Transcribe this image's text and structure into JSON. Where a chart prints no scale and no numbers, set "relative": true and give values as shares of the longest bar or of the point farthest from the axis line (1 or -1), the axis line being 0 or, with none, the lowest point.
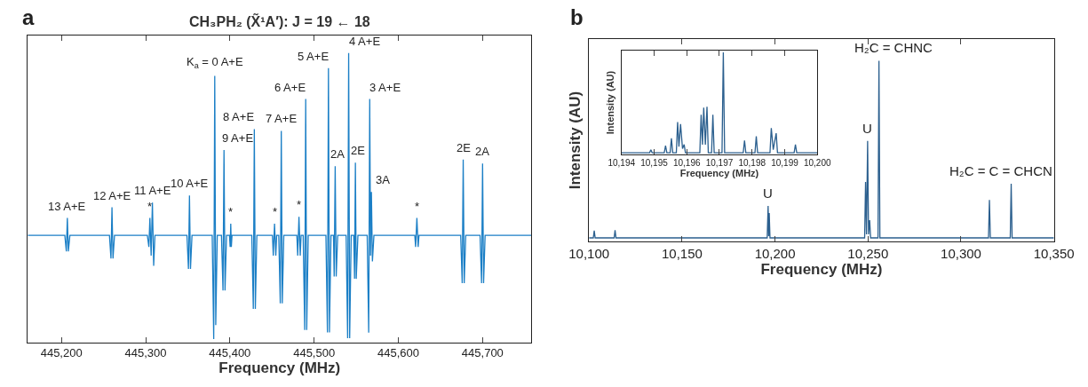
{
  "chart_data": [
    {
      "type": "line",
      "relative": true,
      "title": "CH₃PH₂ (X̃¹A′): J = 19 ← 18",
      "xlabel": "Frequency (MHz)",
      "tick_labels": "x",
      "xlim": [
        445160,
        445758
      ],
      "xticks": [
        {
          "value": 445200,
          "label": "445,200"
        },
        {
          "value": 445300,
          "label": "445,300"
        },
        {
          "value": 445400,
          "label": "445,400"
        },
        {
          "value": 445500,
          "label": "445,500"
        },
        {
          "value": 445600,
          "label": "445,600"
        },
        {
          "value": 445700,
          "label": "445,700"
        }
      ],
      "x": [
        445160,
        445204,
        445205.8,
        445207,
        445208.2,
        445210,
        445257,
        445258.8,
        445260,
        445261.2,
        445263,
        445302,
        445303.8,
        445305,
        445306.5,
        445308,
        445309.5,
        445311,
        445349,
        445350.8,
        445352,
        445353.2,
        445355,
        445379,
        445380.8,
        445382,
        445383.2,
        445385,
        445390,
        445391.8,
        445393,
        445394.2,
        445396,
        445399.5,
        445400.3,
        445401,
        445401.7,
        445402.5,
        445426,
        445427.8,
        445429,
        445430.2,
        445432,
        445450.5,
        445451.5,
        445453,
        445454.5,
        445455.5,
        445458,
        445459.8,
        445461,
        445462.2,
        445464,
        445479.5,
        445480.5,
        445482,
        445483.5,
        445484.5,
        445487,
        445488.8,
        445490,
        445491.2,
        445493,
        445514,
        445515.8,
        445517,
        445518.2,
        445520,
        445523,
        445523.8,
        445525,
        445526.2,
        445528,
        445538,
        445539.8,
        445541,
        445542.2,
        445544,
        445547,
        445548,
        445549,
        445550,
        445552,
        445563,
        445564.8,
        445566,
        445567,
        445568,
        445569.2,
        445571,
        445619.5,
        445620.5,
        445622,
        445623.5,
        445624.5,
        445674,
        445675.8,
        445677,
        445678.2,
        445680,
        445697,
        445698.8,
        445700,
        445701.2,
        445703,
        445758
      ],
      "series": [
        {
          "color": "#1b7fc6",
          "values": [
            0.37,
            0.37,
            0.315,
            0.43,
            0.315,
            0.37,
            0.37,
            0.29,
            0.467,
            0.29,
            0.37,
            0.37,
            0.33,
            0.43,
            0.3,
            0.483,
            0.265,
            0.37,
            0.37,
            0.254,
            0.508,
            0.254,
            0.37,
            0.37,
            0.012,
            0.921,
            0.06,
            0.37,
            0.37,
            0.18,
            0.665,
            0.18,
            0.37,
            0.37,
            0.33,
            0.41,
            0.33,
            0.37,
            0.37,
            0.116,
            0.737,
            0.116,
            0.37,
            0.37,
            0.3,
            0.41,
            0.3,
            0.37,
            0.37,
            0.135,
            0.731,
            0.135,
            0.37,
            0.37,
            0.3,
            0.434,
            0.3,
            0.37,
            0.37,
            0.043,
            0.841,
            0.043,
            0.37,
            0.37,
            0.035,
            0.948,
            0.035,
            0.37,
            0.37,
            0.228,
            0.609,
            0.228,
            0.37,
            0.37,
            0.015,
            1,
            0.015,
            0.37,
            0.37,
            0.22,
            0.621,
            0.22,
            0.37,
            0.37,
            0.034,
            0.841,
            0.3,
            0.52,
            0.28,
            0.37,
            0.37,
            0.33,
            0.43,
            0.33,
            0.37,
            0.37,
            0.205,
            0.632,
            0.205,
            0.37,
            0.37,
            0.205,
            0.618,
            0.205,
            0.37,
            0.37
          ]
        }
      ],
      "annotations": [
        "a",
        {
          "text": "13 A+E",
          "x": 445207,
          "y": 0.43
        },
        {
          "text": "12 A+E",
          "x": 445260,
          "y": 0.467
        },
        {
          "text": "*",
          "x": 445305,
          "y": 0.43
        },
        {
          "text": "11 A+E",
          "x": 445308,
          "y": 0.483
        },
        {
          "text": "10 A+E",
          "x": 445352,
          "y": 0.508
        },
        {
          "text": "K$_{a}$ = 0 A+E",
          "x": 445382,
          "y": 0.921
        },
        {
          "text": "9 A+E",
          "x": 445393,
          "y": 0.665
        },
        {
          "text": "*",
          "x": 445401,
          "y": 0.41
        },
        {
          "text": "8 A+E",
          "x": 445429,
          "y": 0.737
        },
        {
          "text": "*",
          "x": 445453,
          "y": 0.41
        },
        {
          "text": "7 A+E",
          "x": 445461,
          "y": 0.731
        },
        {
          "text": "*",
          "x": 445482,
          "y": 0.434
        },
        {
          "text": "6 A+E",
          "x": 445490,
          "y": 0.841
        },
        {
          "text": "5 A+E",
          "x": 445517,
          "y": 0.948
        },
        {
          "text": "2A",
          "x": 445525,
          "y": 0.609
        },
        {
          "text": "4 A+E",
          "x": 445541,
          "y": 1
        },
        {
          "text": "2E",
          "x": 445549,
          "y": 0.621
        },
        {
          "text": "3 A+E",
          "x": 445566,
          "y": 0.841
        },
        {
          "text": "3A",
          "x": 445568,
          "y": 0.52
        },
        {
          "text": "*",
          "x": 445622,
          "y": 0.43
        },
        {
          "text": "2E",
          "x": 445677,
          "y": 0.632
        },
        {
          "text": "2A",
          "x": 445700,
          "y": 0.618
        }
      ]
    },
    {
      "type": "line",
      "relative": true,
      "xlabel": "Frequency (MHz)",
      "ylabel": "Intensity (AU)",
      "tick_labels": "x",
      "xlim": [
        10100,
        10350
      ],
      "xticks": [
        {
          "value": 10100,
          "label": "10,100"
        },
        {
          "value": 10150,
          "label": "10,150"
        },
        {
          "value": 10200,
          "label": "10,200"
        },
        {
          "value": 10250,
          "label": "10,250"
        },
        {
          "value": 10300,
          "label": "10,300"
        },
        {
          "value": 10350,
          "label": "10,350"
        }
      ],
      "x": [
        10100,
        10102.3,
        10102.8,
        10103.3,
        10113.5,
        10114,
        10114.5,
        10195.8,
        10196.3,
        10196.6,
        10196.9,
        10197.3,
        10248.2,
        10248.7,
        10249.2,
        10249.8,
        10250.3,
        10250.9,
        10251.4,
        10255.4,
        10255.9,
        10256.4,
        10314.8,
        10315.3,
        10315.8,
        10326.5,
        10327,
        10327.5,
        10350
      ],
      "series": [
        {
          "color": "#2b5f8e",
          "values": [
            0.02,
            0.02,
            0.06,
            0.02,
            0.02,
            0.063,
            0.02,
            0.02,
            0.197,
            0.03,
            0.157,
            0.02,
            0.02,
            0.329,
            0.04,
            0.557,
            0.04,
            0.118,
            0.02,
            0.02,
            1,
            0.02,
            0.02,
            0.23,
            0.02,
            0.02,
            0.319,
            0.02,
            0.02
          ]
        }
      ],
      "annotations": [
        "b",
        {
          "text": "U",
          "x": 10196.3,
          "y": 0.197
        },
        {
          "text": "U",
          "x": 10249.8,
          "y": 0.557
        },
        {
          "text": "H₂C = CHNC",
          "x": 10255.9,
          "y": 1
        },
        {
          "text": "H₂C = C = CHCN",
          "x": 10327,
          "y": 0.319
        }
      ]
    },
    {
      "type": "line",
      "relative": true,
      "xlabel": "Frequency (MHz)",
      "ylabel": "Intensity (AU)",
      "tick_labels": "x",
      "xlim": [
        10194,
        10200
      ],
      "xticks": [
        {
          "value": 10194,
          "label": "10,194"
        },
        {
          "value": 10195,
          "label": "10,195"
        },
        {
          "value": 10196,
          "label": "10,196"
        },
        {
          "value": 10197,
          "label": "10,197"
        },
        {
          "value": 10198,
          "label": "10,198"
        },
        {
          "value": 10199,
          "label": "10,199"
        },
        {
          "value": 10200,
          "label": "10,200"
        }
      ],
      "x": [
        10194,
        10194.86,
        10194.9,
        10194.94,
        10195.31,
        10195.35,
        10195.39,
        10195.49,
        10195.53,
        10195.57,
        10195.68,
        10195.72,
        10195.76,
        10195.81,
        10195.87,
        10195.92,
        10195.96,
        10196.4,
        10196.44,
        10196.48,
        10196.52,
        10196.57,
        10196.62,
        10196.66,
        10196.76,
        10196.8,
        10196.84,
        10197.08,
        10197.12,
        10197.16,
        10197.73,
        10197.77,
        10197.81,
        10198.09,
        10198.13,
        10198.17,
        10198.55,
        10198.59,
        10198.65,
        10198.74,
        10198.78,
        10199.29,
        10199.33,
        10199.37,
        10200
      ],
      "series": [
        {
          "color": "#2b5f8e",
          "values": [
            0.02,
            0.02,
            0.05,
            0.02,
            0.02,
            0.09,
            0.02,
            0.02,
            0.16,
            0.02,
            0.02,
            0.32,
            0.08,
            0.3,
            0.06,
            0.1,
            0.02,
            0.02,
            0.39,
            0.1,
            0.46,
            0.1,
            0.47,
            0.02,
            0.02,
            0.39,
            0.02,
            0.02,
            1,
            0.02,
            0.02,
            0.14,
            0.02,
            0.02,
            0.18,
            0.02,
            0.02,
            0.26,
            0.05,
            0.21,
            0.02,
            0.02,
            0.1,
            0.02,
            0.02
          ]
        }
      ]
    }
  ]
}
